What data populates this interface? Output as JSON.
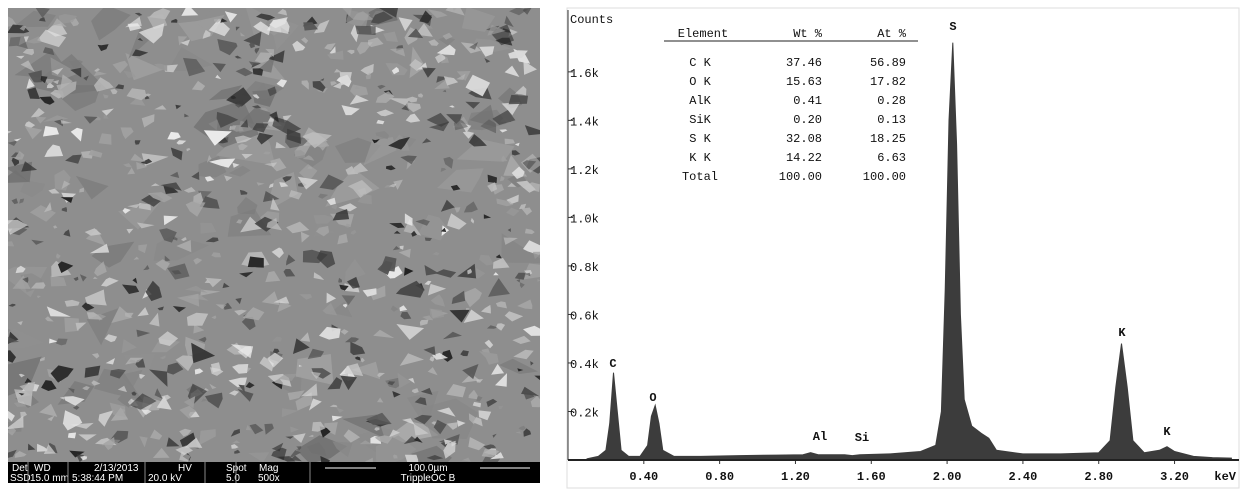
{
  "sem_image": {
    "info_headers": [
      "Det",
      "WD",
      "2/13/2013",
      "HV",
      "Spot",
      "Mag"
    ],
    "info_values": [
      "SSD",
      "15.0 mm",
      "5:38:44 PM",
      "20.0 kV",
      "5.0",
      "500x"
    ],
    "scale_bar": "100.0µm",
    "sample_label": "TrippleOC B"
  },
  "chart_data": {
    "type": "area",
    "y_label": "Counts",
    "x_label": "keV",
    "xlim": [
      0,
      3.54
    ],
    "ylim": [
      0,
      1855
    ],
    "xticks": [
      {
        "value": 0.4,
        "label": "0.40"
      },
      {
        "value": 0.8,
        "label": "0.80"
      },
      {
        "value": 1.2,
        "label": "1.20"
      },
      {
        "value": 1.6,
        "label": "1.60"
      },
      {
        "value": 2.0,
        "label": "2.00"
      },
      {
        "value": 2.4,
        "label": "2.40"
      },
      {
        "value": 2.8,
        "label": "2.80"
      },
      {
        "value": 3.2,
        "label": "3.20"
      }
    ],
    "yticks": [
      {
        "value": 200,
        "label": "0.2k"
      },
      {
        "value": 400,
        "label": "0.4k"
      },
      {
        "value": 600,
        "label": "0.6k"
      },
      {
        "value": 800,
        "label": "0.8k"
      },
      {
        "value": 1000,
        "label": "1.0k"
      },
      {
        "value": 1200,
        "label": "1.2k"
      },
      {
        "value": 1400,
        "label": "1.4k"
      },
      {
        "value": 1600,
        "label": "1.6k"
      }
    ],
    "x": [
      0.1,
      0.16,
      0.2,
      0.22,
      0.24,
      0.26,
      0.28,
      0.32,
      0.38,
      0.42,
      0.44,
      0.46,
      0.48,
      0.5,
      0.56,
      0.7,
      0.9,
      1.1,
      1.24,
      1.28,
      1.32,
      1.46,
      1.5,
      1.54,
      1.7,
      1.86,
      1.94,
      1.97,
      1.99,
      2.01,
      2.03,
      2.05,
      2.07,
      2.09,
      2.13,
      2.18,
      2.22,
      2.26,
      2.4,
      2.6,
      2.8,
      2.86,
      2.89,
      2.92,
      2.95,
      2.98,
      3.04,
      3.12,
      3.16,
      3.2,
      3.3,
      3.4,
      3.5
    ],
    "series": [
      {
        "color": "#3c3c3c",
        "values": [
          5,
          15,
          40,
          150,
          360,
          200,
          40,
          15,
          15,
          60,
          180,
          225,
          150,
          40,
          15,
          15,
          18,
          20,
          22,
          30,
          22,
          22,
          18,
          22,
          25,
          35,
          60,
          200,
          700,
          1400,
          1720,
          1300,
          600,
          250,
          140,
          110,
          90,
          40,
          25,
          25,
          30,
          80,
          300,
          480,
          300,
          80,
          30,
          40,
          55,
          35,
          15,
          10,
          8
        ]
      }
    ],
    "peak_labels": [
      "C",
      "O",
      "Al",
      "Si",
      "S",
      "K",
      "K"
    ],
    "table": {
      "header": [
        "Element",
        "Wt %",
        "At %"
      ],
      "rows": [
        [
          "C K",
          "37.46",
          "56.89"
        ],
        [
          "O K",
          "15.63",
          "17.82"
        ],
        [
          "AlK",
          "0.41",
          "0.28"
        ],
        [
          "SiK",
          "0.20",
          "0.13"
        ],
        [
          "S K",
          "32.08",
          "18.25"
        ],
        [
          "K K",
          "14.22",
          "6.63"
        ],
        [
          "Total",
          "100.00",
          "100.00"
        ]
      ]
    }
  }
}
